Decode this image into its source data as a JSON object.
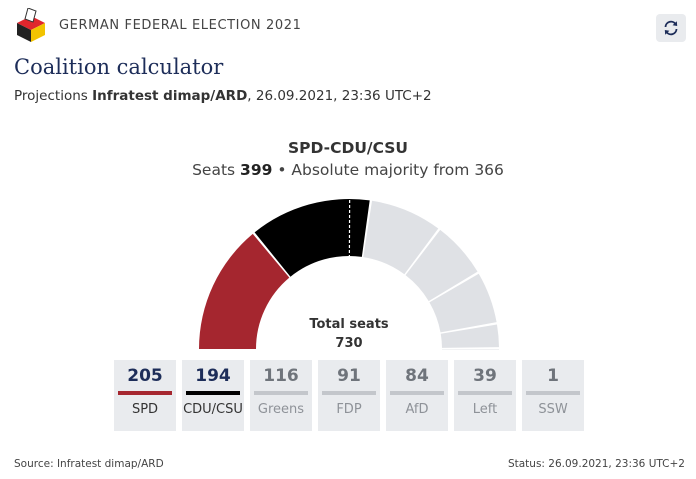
{
  "header": {
    "brand": "GERMAN FEDERAL ELECTION 2021",
    "refresh_icon": "refresh-icon"
  },
  "title": "Coalition calculator",
  "subtitle": {
    "prefix": "Projections ",
    "source": "Infratest dimap/ARD",
    "suffix": ", 26.09.2021, 23:36 UTC+2"
  },
  "coalition": {
    "name": "SPD-CDU/CSU",
    "seats_label": "Seats ",
    "seats": "399",
    "majority_text": " • Absolute majority from 366"
  },
  "chart_data": {
    "type": "pie",
    "layout": "half-donut parliament",
    "total_label": "Total seats",
    "total": 730,
    "majority": 366,
    "parties": [
      {
        "name": "SPD",
        "seats": 205,
        "color": "#a5262f",
        "selected": true
      },
      {
        "name": "CDU/CSU",
        "seats": 194,
        "color": "#000000",
        "selected": true
      },
      {
        "name": "Greens",
        "seats": 116,
        "color": "#c9ccd1",
        "selected": false
      },
      {
        "name": "FDP",
        "seats": 91,
        "color": "#c9ccd1",
        "selected": false
      },
      {
        "name": "AfD",
        "seats": 84,
        "color": "#c9ccd1",
        "selected": false
      },
      {
        "name": "Left",
        "seats": 39,
        "color": "#c9ccd1",
        "selected": false
      },
      {
        "name": "SSW",
        "seats": 1,
        "color": "#c9ccd1",
        "selected": false
      }
    ]
  },
  "footer": {
    "source": "Source: Infratest dimap/ARD",
    "status": "Status: 26.09.2021, 23:36 UTC+2"
  }
}
